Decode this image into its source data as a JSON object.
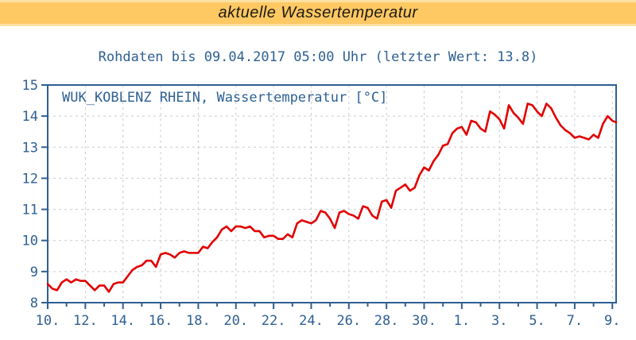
{
  "banner": {
    "title": "aktuelle Wassertemperatur"
  },
  "subtitle": "Rohdaten bis 09.04.2017 05:00 Uhr (letzter Wert: 13.8)",
  "colors": {
    "banner_bg": "#fec863",
    "banner_edge": "#fde1a2",
    "banner_text": "#1e1a12",
    "axis_blue": "#2e6093",
    "text_blue": "#2e6093",
    "line_red": "#e10000",
    "grid_gray": "#cbcbcb",
    "background": "#ffffff"
  },
  "chart_data": {
    "type": "line",
    "title": "",
    "legend": "WUK_KOBLENZ RHEIN, Wassertemperatur [°C]",
    "legend_position": "top-left-inside",
    "xlabel": "",
    "ylabel": "",
    "grid": true,
    "x_unit": "days since 10.03.2017 (0 = 10 March, 30 = 9 April 2017)",
    "x_axis_note": "tick labels are days of month, period 10.03.2017 - 09.04.2017",
    "xlim": [
      0,
      30.2
    ],
    "ylim": [
      8,
      15
    ],
    "yticks": [
      8,
      9,
      10,
      11,
      12,
      13,
      14,
      15
    ],
    "x_major_ticks": {
      "positions": [
        0,
        2,
        4,
        6,
        8,
        10,
        12,
        14,
        16,
        18,
        20,
        22,
        24,
        26,
        28,
        30
      ],
      "labels": [
        "10.",
        "12.",
        "14.",
        "16.",
        "18.",
        "20.",
        "22.",
        "24.",
        "26.",
        "28.",
        "30.",
        "1.",
        "3.",
        "5.",
        "7.",
        "9."
      ]
    },
    "x_minor_ticks": [
      1,
      3,
      5,
      7,
      9,
      11,
      13,
      15,
      17,
      19,
      21,
      23,
      25,
      27,
      29
    ],
    "last_value": 13.8,
    "series": [
      {
        "name": "WUK_KOBLENZ RHEIN, Wassertemperatur [°C]",
        "x_start": 0,
        "x_step": 0.25,
        "values": [
          8.6,
          8.45,
          8.4,
          8.65,
          8.75,
          8.65,
          8.75,
          8.7,
          8.7,
          8.55,
          8.4,
          8.55,
          8.55,
          8.35,
          8.6,
          8.65,
          8.65,
          8.85,
          9.05,
          9.15,
          9.2,
          9.35,
          9.35,
          9.15,
          9.55,
          9.6,
          9.55,
          9.45,
          9.6,
          9.65,
          9.6,
          9.6,
          9.6,
          9.8,
          9.75,
          9.95,
          10.1,
          10.35,
          10.45,
          10.3,
          10.45,
          10.45,
          10.4,
          10.45,
          10.3,
          10.3,
          10.1,
          10.15,
          10.15,
          10.05,
          10.05,
          10.2,
          10.1,
          10.55,
          10.65,
          10.6,
          10.55,
          10.65,
          10.95,
          10.9,
          10.7,
          10.4,
          10.9,
          10.95,
          10.85,
          10.8,
          10.7,
          11.1,
          11.05,
          10.8,
          10.7,
          11.25,
          11.3,
          11.05,
          11.6,
          11.7,
          11.8,
          11.6,
          11.7,
          12.1,
          12.35,
          12.25,
          12.55,
          12.75,
          13.05,
          13.1,
          13.45,
          13.6,
          13.65,
          13.4,
          13.85,
          13.8,
          13.6,
          13.5,
          14.15,
          14.05,
          13.9,
          13.6,
          14.35,
          14.1,
          13.95,
          13.75,
          14.4,
          14.35,
          14.15,
          14.0,
          14.4,
          14.25,
          13.95,
          13.7,
          13.55,
          13.45,
          13.3,
          13.35,
          13.3,
          13.25,
          13.4,
          13.3,
          13.75,
          14.0,
          13.85,
          13.8
        ]
      }
    ]
  }
}
